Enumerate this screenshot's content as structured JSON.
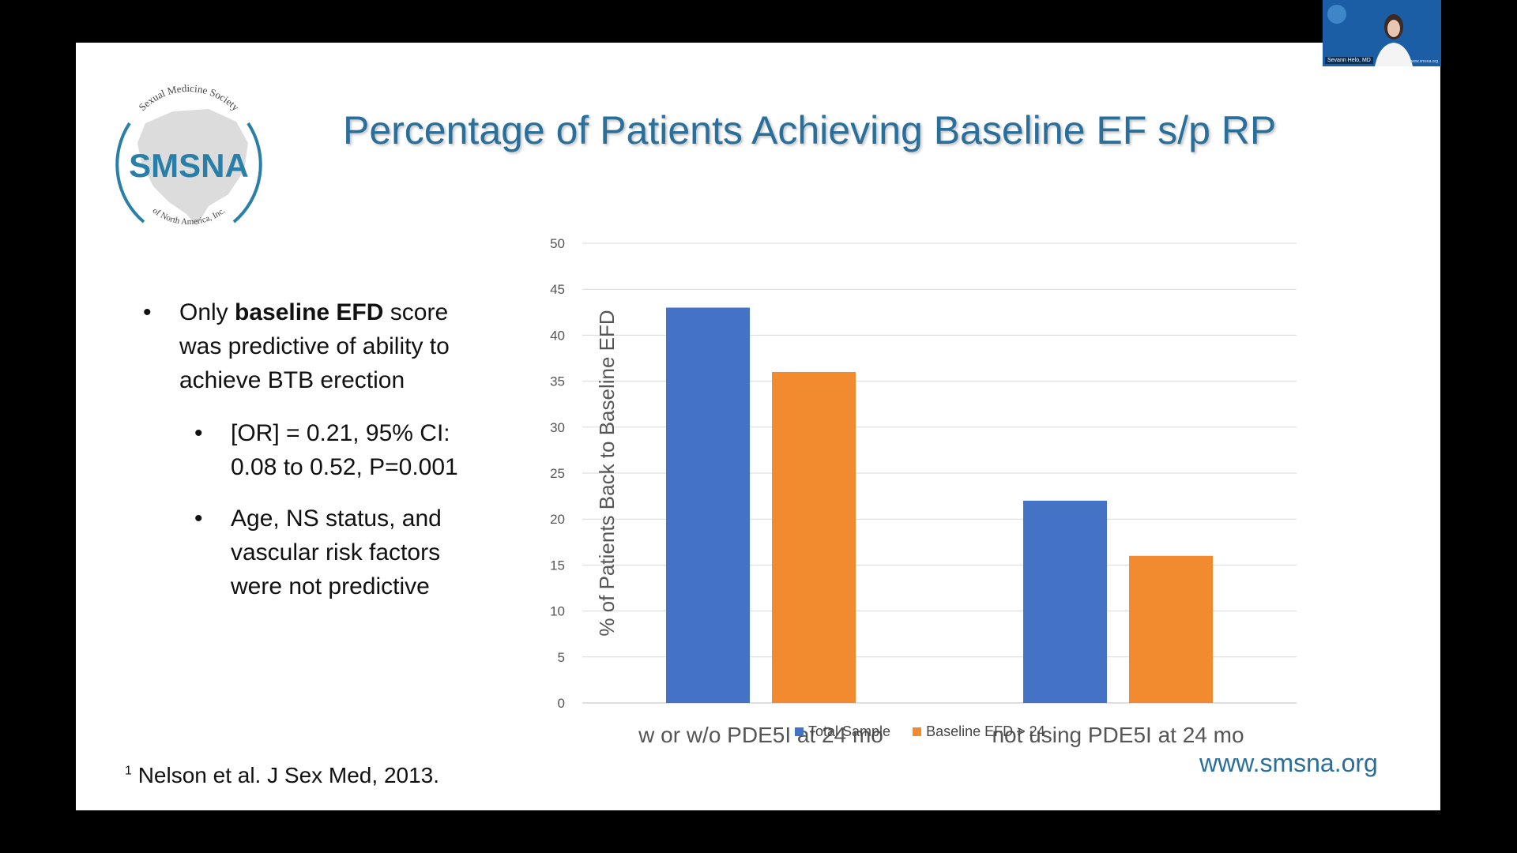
{
  "slide": {
    "title": "Percentage of Patients Achieving Baseline EF s/p RP",
    "logo": {
      "arc_top_text": "Sexual Medicine Society",
      "main_text": "SMSNA",
      "arc_bottom_text": "of North America, Inc."
    },
    "bullets": [
      {
        "text_before": "Only ",
        "bold": "baseline EFD",
        "text_after": " score was predictive of ability to achieve BTB erection"
      }
    ],
    "sub_bullets": [
      "[OR] = 0.21, 95% CI: 0.08 to 0.52, P=0.001",
      "Age, NS status, and vascular risk factors were not predictive"
    ],
    "bullet_glyph": "•",
    "footnote": {
      "marker": "1",
      "text": "Nelson et al. J Sex Med, 2013."
    },
    "website": "www.smsna.org"
  },
  "video": {
    "participant_name": "Sevann Helo, MD",
    "background_caption": "www.smsna.org"
  },
  "colors": {
    "title": "#2a6f9a",
    "series_total": "#4472c4",
    "series_baseline": "#f28a30"
  },
  "chart_data": {
    "type": "bar",
    "title": "",
    "xlabel": "",
    "ylabel": "% of Patients Back to Baseline EFD",
    "categories": [
      "w or w/o PDE5I at 24 mo",
      "not using PDE5I at 24 mo"
    ],
    "series": [
      {
        "name": "Total Sample",
        "values": [
          43,
          22
        ],
        "color": "#4472c4"
      },
      {
        "name": "Baseline EFD > 24",
        "values": [
          36,
          16
        ],
        "color": "#f28a30"
      }
    ],
    "ylim": [
      0,
      50
    ],
    "yticks": [
      0,
      5,
      10,
      15,
      20,
      25,
      30,
      35,
      40,
      45,
      50
    ],
    "grid": true,
    "legend": "bottom"
  }
}
